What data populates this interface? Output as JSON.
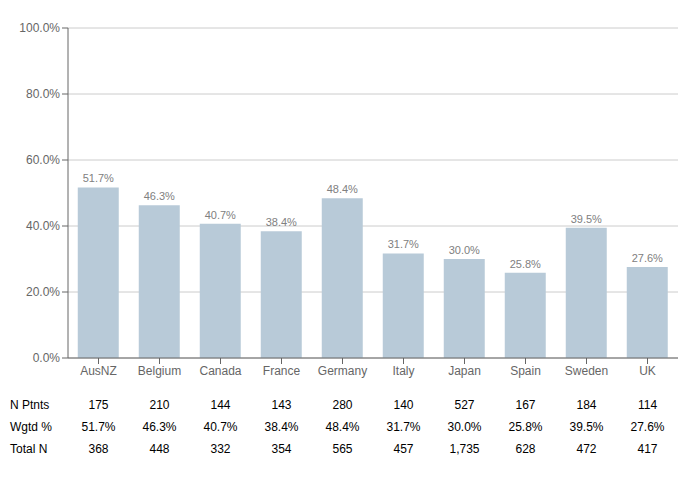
{
  "chart_data": {
    "type": "bar",
    "categories": [
      "AusNZ",
      "Belgium",
      "Canada",
      "France",
      "Germany",
      "Italy",
      "Japan",
      "Spain",
      "Sweden",
      "UK"
    ],
    "values": [
      51.7,
      46.3,
      40.7,
      38.4,
      48.4,
      31.7,
      30.0,
      25.8,
      39.5,
      27.6
    ],
    "value_labels": [
      "51.7%",
      "46.3%",
      "40.7%",
      "38.4%",
      "48.4%",
      "31.7%",
      "30.0%",
      "25.8%",
      "39.5%",
      "27.6%"
    ],
    "data_labels": true,
    "color": "#b8cad8",
    "ylim": [
      0,
      100
    ],
    "yticks": [
      {
        "value": 0,
        "label": "0.0%"
      },
      {
        "value": 20,
        "label": "20.0%"
      },
      {
        "value": 40,
        "label": "40.0%"
      },
      {
        "value": 60,
        "label": "60.0%"
      },
      {
        "value": 80,
        "label": "80.0%"
      },
      {
        "value": 100,
        "label": "100.0%"
      }
    ],
    "grid": true,
    "table": {
      "row_labels": [
        "N Ptnts",
        "Wgtd %",
        "Total N"
      ],
      "rows": [
        [
          "175",
          "210",
          "144",
          "143",
          "280",
          "140",
          "527",
          "167",
          "184",
          "114"
        ],
        [
          "51.7%",
          "46.3%",
          "40.7%",
          "38.4%",
          "48.4%",
          "31.7%",
          "30.0%",
          "25.8%",
          "39.5%",
          "27.6%"
        ],
        [
          "368",
          "448",
          "332",
          "354",
          "565",
          "457",
          "1,735",
          "628",
          "472",
          "417"
        ]
      ]
    }
  }
}
